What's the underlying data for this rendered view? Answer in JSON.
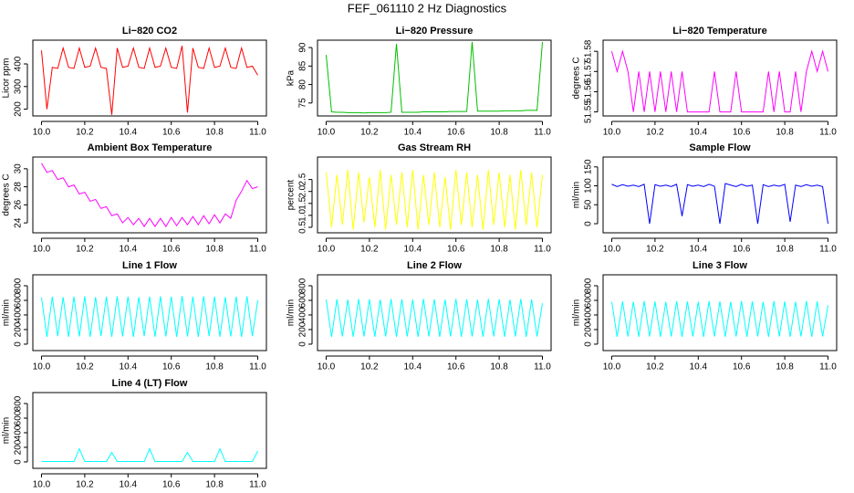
{
  "title": "FEF_061110  2 Hz Diagnostics",
  "chart_data": [
    {
      "type": "line",
      "title": "Li−820 CO2",
      "ylabel": "Licor ppm",
      "color": "#ff0000",
      "xlim": [
        9.96,
        11.04
      ],
      "xticks": [
        {
          "value": 10,
          "label": "10.0"
        },
        10.2,
        10.4,
        10.6,
        10.8,
        {
          "value": 11,
          "label": "11.0"
        }
      ],
      "ylim": [
        170,
        505
      ],
      "yticks": [
        200,
        300,
        400
      ],
      "x": [
        10,
        10.025,
        10.05,
        10.075,
        10.1,
        10.125,
        10.15,
        10.175,
        10.2,
        10.225,
        10.25,
        10.275,
        10.3,
        10.325,
        10.35,
        10.375,
        10.4,
        10.425,
        10.45,
        10.475,
        10.5,
        10.525,
        10.55,
        10.575,
        10.6,
        10.625,
        10.65,
        10.675,
        10.7,
        10.725,
        10.75,
        10.775,
        10.8,
        10.825,
        10.85,
        10.875,
        10.9,
        10.925,
        10.95,
        10.975,
        11
      ],
      "values": [
        460,
        200,
        385,
        380,
        470,
        385,
        380,
        470,
        385,
        390,
        470,
        385,
        380,
        175,
        470,
        385,
        390,
        470,
        385,
        380,
        470,
        385,
        390,
        470,
        385,
        380,
        480,
        185,
        470,
        385,
        380,
        470,
        385,
        390,
        470,
        385,
        380,
        470,
        385,
        390,
        350
      ]
    },
    {
      "type": "line",
      "title": "Li−820 Pressure",
      "ylabel": "kPa",
      "color": "#00c000",
      "xlim": [
        9.96,
        11.04
      ],
      "xticks": [
        {
          "value": 10,
          "label": "10.0"
        },
        10.2,
        10.4,
        10.6,
        10.8,
        {
          "value": 11,
          "label": "11.0"
        }
      ],
      "ylim": [
        71.5,
        92
      ],
      "yticks": [
        75,
        80,
        85,
        90
      ],
      "x": [
        10,
        10.025,
        10.05,
        10.075,
        10.1,
        10.125,
        10.15,
        10.175,
        10.2,
        10.225,
        10.25,
        10.275,
        10.3,
        10.325,
        10.35,
        10.375,
        10.4,
        10.425,
        10.45,
        10.475,
        10.5,
        10.525,
        10.55,
        10.575,
        10.6,
        10.625,
        10.65,
        10.675,
        10.7,
        10.725,
        10.75,
        10.775,
        10.8,
        10.825,
        10.85,
        10.875,
        10.9,
        10.925,
        10.95,
        10.975,
        11
      ],
      "values": [
        88,
        72.6,
        72.5,
        72.5,
        72.4,
        72.4,
        72.4,
        72.3,
        72.4,
        72.4,
        72.4,
        72.4,
        72.5,
        91,
        72.5,
        72.5,
        72.5,
        72.5,
        72.6,
        72.6,
        72.6,
        72.6,
        72.6,
        72.7,
        72.7,
        72.7,
        72.7,
        91.5,
        72.8,
        72.8,
        72.8,
        72.8,
        72.8,
        72.9,
        72.9,
        72.9,
        72.9,
        73,
        73,
        73,
        91.5
      ]
    },
    {
      "type": "line",
      "title": "Li−820 Temperature",
      "ylabel": "degrees C",
      "color": "#ff00ff",
      "xlim": [
        9.96,
        11.04
      ],
      "xticks": [
        {
          "value": 10,
          "label": "10.0"
        },
        10.2,
        10.4,
        10.6,
        10.8,
        {
          "value": 11,
          "label": "11.0"
        }
      ],
      "ylim": [
        51.548,
        51.5855
      ],
      "yticks": [
        51.55,
        51.56,
        51.57,
        51.58
      ],
      "x": [
        10,
        10.025,
        10.05,
        10.075,
        10.1,
        10.125,
        10.15,
        10.175,
        10.2,
        10.225,
        10.25,
        10.275,
        10.3,
        10.325,
        10.35,
        10.375,
        10.4,
        10.425,
        10.45,
        10.475,
        10.5,
        10.525,
        10.55,
        10.575,
        10.6,
        10.625,
        10.65,
        10.675,
        10.7,
        10.725,
        10.75,
        10.775,
        10.8,
        10.825,
        10.85,
        10.875,
        10.9,
        10.925,
        10.95,
        10.975,
        11
      ],
      "values": [
        51.58,
        51.57,
        51.58,
        51.57,
        51.55,
        51.57,
        51.55,
        51.57,
        51.55,
        51.57,
        51.55,
        51.57,
        51.55,
        51.57,
        51.55,
        51.55,
        51.55,
        51.55,
        51.55,
        51.57,
        51.55,
        51.55,
        51.55,
        51.57,
        51.55,
        51.55,
        51.55,
        51.55,
        51.55,
        51.57,
        51.55,
        51.57,
        51.55,
        51.55,
        51.57,
        51.55,
        51.57,
        51.58,
        51.57,
        51.58,
        51.57
      ]
    },
    {
      "type": "line",
      "title": "Ambient Box Temperature",
      "ylabel": "degrees C",
      "color": "#ff00ff",
      "xlim": [
        9.96,
        11.04
      ],
      "xticks": [
        {
          "value": 10,
          "label": "10.0"
        },
        10.2,
        10.4,
        10.6,
        10.8,
        {
          "value": 11,
          "label": "11.0"
        }
      ],
      "ylim": [
        22.9,
        31.3
      ],
      "yticks": [
        24,
        26,
        28,
        30
      ],
      "x": [
        10,
        10.025,
        10.05,
        10.075,
        10.1,
        10.125,
        10.15,
        10.175,
        10.2,
        10.225,
        10.25,
        10.275,
        10.3,
        10.325,
        10.35,
        10.375,
        10.4,
        10.425,
        10.45,
        10.475,
        10.5,
        10.525,
        10.55,
        10.575,
        10.6,
        10.625,
        10.65,
        10.675,
        10.7,
        10.725,
        10.75,
        10.775,
        10.8,
        10.825,
        10.85,
        10.875,
        10.9,
        10.925,
        10.95,
        10.975,
        11
      ],
      "values": [
        30.6,
        29.6,
        29.8,
        28.8,
        29.0,
        28.0,
        28.2,
        27.2,
        27.4,
        26.4,
        26.6,
        25.6,
        25.8,
        24.8,
        25.0,
        24.0,
        24.6,
        23.8,
        24.5,
        23.6,
        24.5,
        23.6,
        24.5,
        23.6,
        24.6,
        23.7,
        24.6,
        23.8,
        24.7,
        23.8,
        24.8,
        23.9,
        24.9,
        24.0,
        25.0,
        24.5,
        26.5,
        27.5,
        28.7,
        27.8,
        28.0
      ]
    },
    {
      "type": "line",
      "title": "Gas Stream RH",
      "ylabel": "percent",
      "color": "#ffff00",
      "xlim": [
        9.96,
        11.04
      ],
      "xticks": [
        {
          "value": 10,
          "label": "10.0"
        },
        10.2,
        10.4,
        10.6,
        10.8,
        {
          "value": 11,
          "label": "11.0"
        }
      ],
      "ylim": [
        0.27,
        3.44
      ],
      "yticks": [
        0.5,
        {
          "value": 1,
          "label": "1.0"
        },
        1.5,
        {
          "value": 2,
          "label": "2.0"
        },
        2.5
      ],
      "x": [
        10,
        10.025,
        10.05,
        10.075,
        10.1,
        10.125,
        10.15,
        10.175,
        10.2,
        10.225,
        10.25,
        10.275,
        10.3,
        10.325,
        10.35,
        10.375,
        10.4,
        10.425,
        10.45,
        10.475,
        10.5,
        10.525,
        10.55,
        10.575,
        10.6,
        10.625,
        10.65,
        10.675,
        10.7,
        10.725,
        10.75,
        10.775,
        10.8,
        10.825,
        10.85,
        10.875,
        10.9,
        10.925,
        10.95,
        10.975,
        11
      ],
      "values": [
        2.8,
        0.5,
        2.7,
        0.6,
        2.9,
        0.4,
        2.8,
        0.7,
        2.6,
        0.5,
        2.9,
        0.4,
        2.7,
        0.6,
        2.8,
        0.5,
        2.9,
        0.4,
        2.7,
        0.6,
        2.8,
        0.5,
        2.6,
        0.4,
        2.9,
        0.6,
        2.8,
        0.5,
        2.7,
        0.4,
        2.9,
        0.6,
        2.8,
        0.5,
        2.7,
        0.4,
        2.9,
        0.6,
        2.8,
        0.5,
        2.7
      ]
    },
    {
      "type": "line",
      "title": "Sample Flow",
      "ylabel": "ml/min",
      "color": "#0000ff",
      "xlim": [
        9.96,
        11.04
      ],
      "xticks": [
        {
          "value": 10,
          "label": "10.0"
        },
        10.2,
        10.4,
        10.6,
        10.8,
        {
          "value": 11,
          "label": "11.0"
        }
      ],
      "ylim": [
        -24,
        176
      ],
      "yticks": [
        0,
        50,
        100,
        150
      ],
      "x": [
        10,
        10.025,
        10.05,
        10.075,
        10.1,
        10.125,
        10.15,
        10.175,
        10.2,
        10.225,
        10.25,
        10.275,
        10.3,
        10.325,
        10.35,
        10.375,
        10.4,
        10.425,
        10.45,
        10.475,
        10.5,
        10.525,
        10.55,
        10.575,
        10.6,
        10.625,
        10.65,
        10.675,
        10.7,
        10.725,
        10.75,
        10.775,
        10.8,
        10.825,
        10.85,
        10.875,
        10.9,
        10.925,
        10.95,
        10.975,
        11
      ],
      "values": [
        104,
        98,
        103,
        99,
        102,
        98,
        104,
        0,
        103,
        99,
        102,
        98,
        104,
        20,
        103,
        99,
        102,
        98,
        104,
        99,
        0,
        106,
        102,
        98,
        104,
        99,
        102,
        0,
        103,
        98,
        102,
        99,
        104,
        5,
        102,
        98,
        103,
        99,
        102,
        98,
        0
      ]
    },
    {
      "type": "line",
      "title": "Line 1 Flow",
      "ylabel": "ml/min",
      "color": "#00ffff",
      "xlim": [
        9.96,
        11.04
      ],
      "xticks": [
        {
          "value": 10,
          "label": "10.0"
        },
        10.2,
        10.4,
        10.6,
        10.8,
        {
          "value": 11,
          "label": "11.0"
        }
      ],
      "ylim": [
        -88,
        950
      ],
      "yticks": [
        0,
        200,
        400,
        600,
        800
      ],
      "x": [
        10,
        10.025,
        10.05,
        10.075,
        10.1,
        10.125,
        10.15,
        10.175,
        10.2,
        10.225,
        10.25,
        10.275,
        10.3,
        10.325,
        10.35,
        10.375,
        10.4,
        10.425,
        10.45,
        10.475,
        10.5,
        10.525,
        10.55,
        10.575,
        10.6,
        10.625,
        10.65,
        10.675,
        10.7,
        10.725,
        10.75,
        10.775,
        10.8,
        10.825,
        10.85,
        10.875,
        10.9,
        10.925,
        10.95,
        10.975,
        11
      ],
      "values": [
        640,
        100,
        650,
        110,
        645,
        100,
        650,
        105,
        655,
        100,
        645,
        110,
        650,
        100,
        655,
        105,
        650,
        100,
        645,
        110,
        650,
        100,
        655,
        105,
        650,
        100,
        660,
        105,
        650,
        100,
        655,
        110,
        650,
        100,
        645,
        105,
        650,
        100,
        655,
        110,
        600
      ]
    },
    {
      "type": "line",
      "title": "Line 2 Flow",
      "ylabel": "ml/min",
      "color": "#00ffff",
      "xlim": [
        9.96,
        11.04
      ],
      "xticks": [
        {
          "value": 10,
          "label": "10.0"
        },
        10.2,
        10.4,
        10.6,
        10.8,
        {
          "value": 11,
          "label": "11.0"
        }
      ],
      "ylim": [
        -88,
        950
      ],
      "yticks": [
        0,
        200,
        400,
        600,
        800
      ],
      "x": [
        10,
        10.025,
        10.05,
        10.075,
        10.1,
        10.125,
        10.15,
        10.175,
        10.2,
        10.225,
        10.25,
        10.275,
        10.3,
        10.325,
        10.35,
        10.375,
        10.4,
        10.425,
        10.45,
        10.475,
        10.5,
        10.525,
        10.55,
        10.575,
        10.6,
        10.625,
        10.65,
        10.675,
        10.7,
        10.725,
        10.75,
        10.775,
        10.8,
        10.825,
        10.85,
        10.875,
        10.9,
        10.925,
        10.95,
        10.975,
        11
      ],
      "values": [
        610,
        100,
        615,
        105,
        610,
        100,
        620,
        105,
        615,
        100,
        610,
        105,
        620,
        100,
        615,
        105,
        610,
        100,
        620,
        105,
        615,
        100,
        610,
        105,
        620,
        100,
        615,
        105,
        610,
        100,
        620,
        105,
        615,
        100,
        610,
        105,
        620,
        100,
        615,
        105,
        560
      ]
    },
    {
      "type": "line",
      "title": "Line 3 Flow",
      "ylabel": "ml/min",
      "color": "#00ffff",
      "xlim": [
        9.96,
        11.04
      ],
      "xticks": [
        {
          "value": 10,
          "label": "10.0"
        },
        10.2,
        10.4,
        10.6,
        10.8,
        {
          "value": 11,
          "label": "11.0"
        }
      ],
      "ylim": [
        -88,
        950
      ],
      "yticks": [
        0,
        200,
        400,
        600,
        800
      ],
      "x": [
        10,
        10.025,
        10.05,
        10.075,
        10.1,
        10.125,
        10.15,
        10.175,
        10.2,
        10.225,
        10.25,
        10.275,
        10.3,
        10.325,
        10.35,
        10.375,
        10.4,
        10.425,
        10.45,
        10.475,
        10.5,
        10.525,
        10.55,
        10.575,
        10.6,
        10.625,
        10.65,
        10.675,
        10.7,
        10.725,
        10.75,
        10.775,
        10.8,
        10.825,
        10.85,
        10.875,
        10.9,
        10.925,
        10.95,
        10.975,
        11
      ],
      "values": [
        580,
        100,
        585,
        105,
        580,
        100,
        590,
        105,
        585,
        100,
        580,
        105,
        590,
        100,
        585,
        105,
        580,
        100,
        590,
        105,
        585,
        100,
        580,
        105,
        590,
        100,
        585,
        105,
        580,
        100,
        590,
        105,
        585,
        100,
        580,
        105,
        590,
        100,
        585,
        105,
        530
      ]
    },
    {
      "type": "line",
      "title": "Line 4 (LT) Flow",
      "ylabel": "ml/min",
      "color": "#00ffff",
      "xlim": [
        9.96,
        11.04
      ],
      "xticks": [
        {
          "value": 10,
          "label": "10.0"
        },
        10.2,
        10.4,
        10.6,
        10.8,
        {
          "value": 11,
          "label": "11.0"
        }
      ],
      "ylim": [
        -88,
        950
      ],
      "yticks": [
        0,
        200,
        400,
        600,
        800
      ],
      "x": [
        10,
        10.025,
        10.05,
        10.075,
        10.1,
        10.125,
        10.15,
        10.175,
        10.2,
        10.225,
        10.25,
        10.275,
        10.3,
        10.325,
        10.35,
        10.375,
        10.4,
        10.425,
        10.45,
        10.475,
        10.5,
        10.525,
        10.55,
        10.575,
        10.6,
        10.625,
        10.65,
        10.675,
        10.7,
        10.725,
        10.75,
        10.775,
        10.8,
        10.825,
        10.85,
        10.875,
        10.9,
        10.925,
        10.95,
        10.975,
        11
      ],
      "values": [
        5,
        5,
        5,
        5,
        5,
        5,
        5,
        180,
        5,
        5,
        5,
        5,
        5,
        130,
        5,
        5,
        5,
        5,
        5,
        5,
        180,
        5,
        5,
        5,
        5,
        5,
        5,
        130,
        5,
        5,
        5,
        5,
        5,
        180,
        5,
        5,
        5,
        5,
        5,
        5,
        150
      ]
    }
  ]
}
